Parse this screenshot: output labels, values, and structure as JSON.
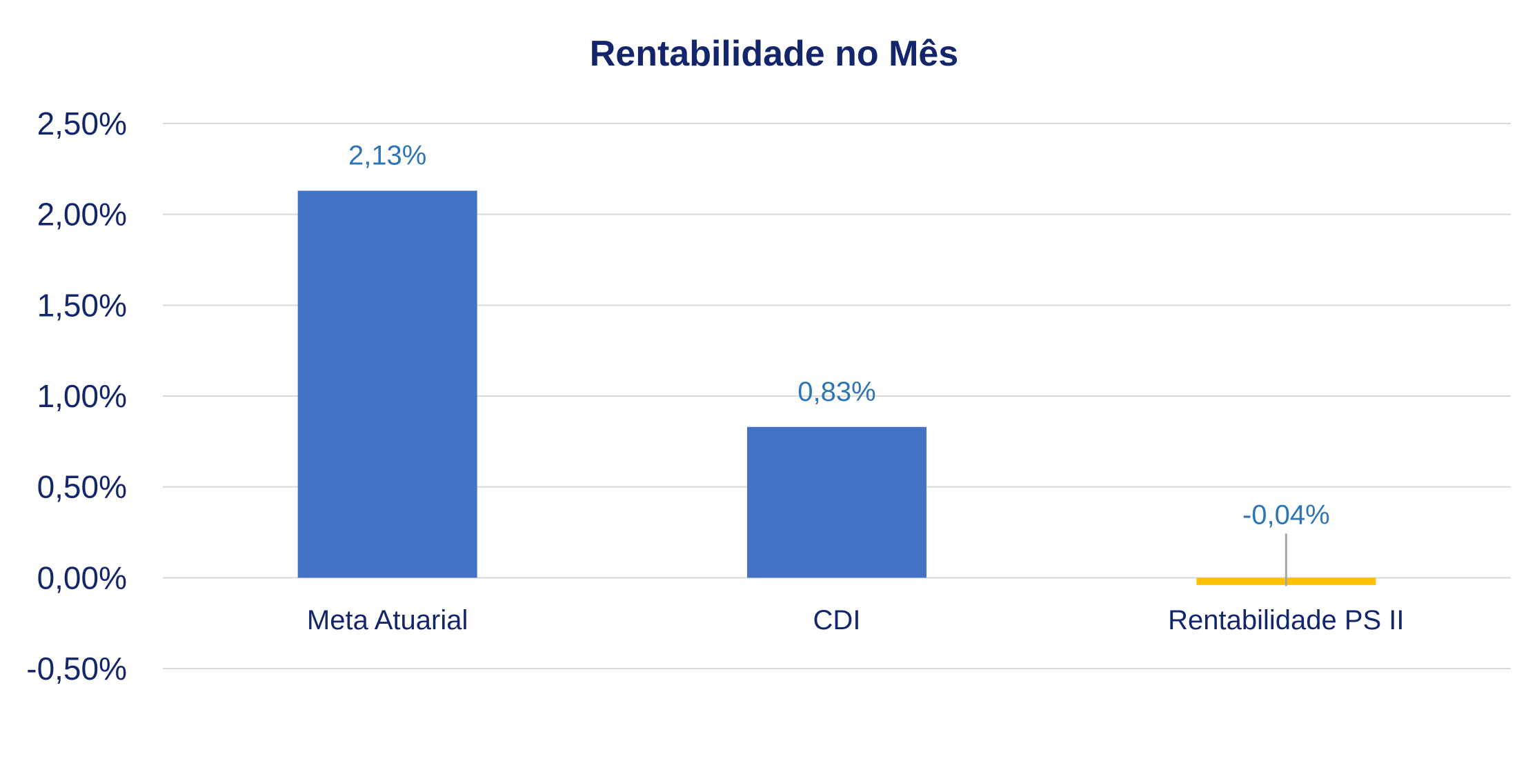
{
  "chart_data": {
    "type": "bar",
    "title": "Rentabilidade no Mês",
    "categories": [
      "Meta Atuarial",
      "CDI",
      "Rentabilidade  PS II"
    ],
    "values": [
      2.13,
      0.83,
      -0.04
    ],
    "data_labels": [
      "2,13%",
      "0,83%",
      "-0,04%"
    ],
    "bar_colors": [
      "#4472c4",
      "#4472c4",
      "#ffc000"
    ],
    "ylim": [
      -0.5,
      2.5
    ],
    "yticks": [
      2.5,
      2.0,
      1.5,
      1.0,
      0.5,
      0.0,
      -0.5
    ],
    "ytick_labels": [
      "2,50%",
      "2,00%",
      "1,50%",
      "1,00%",
      "0,50%",
      "0,00%",
      "-0,50%"
    ],
    "xlabel": "",
    "ylabel": "",
    "grid": true,
    "legend": "none"
  }
}
